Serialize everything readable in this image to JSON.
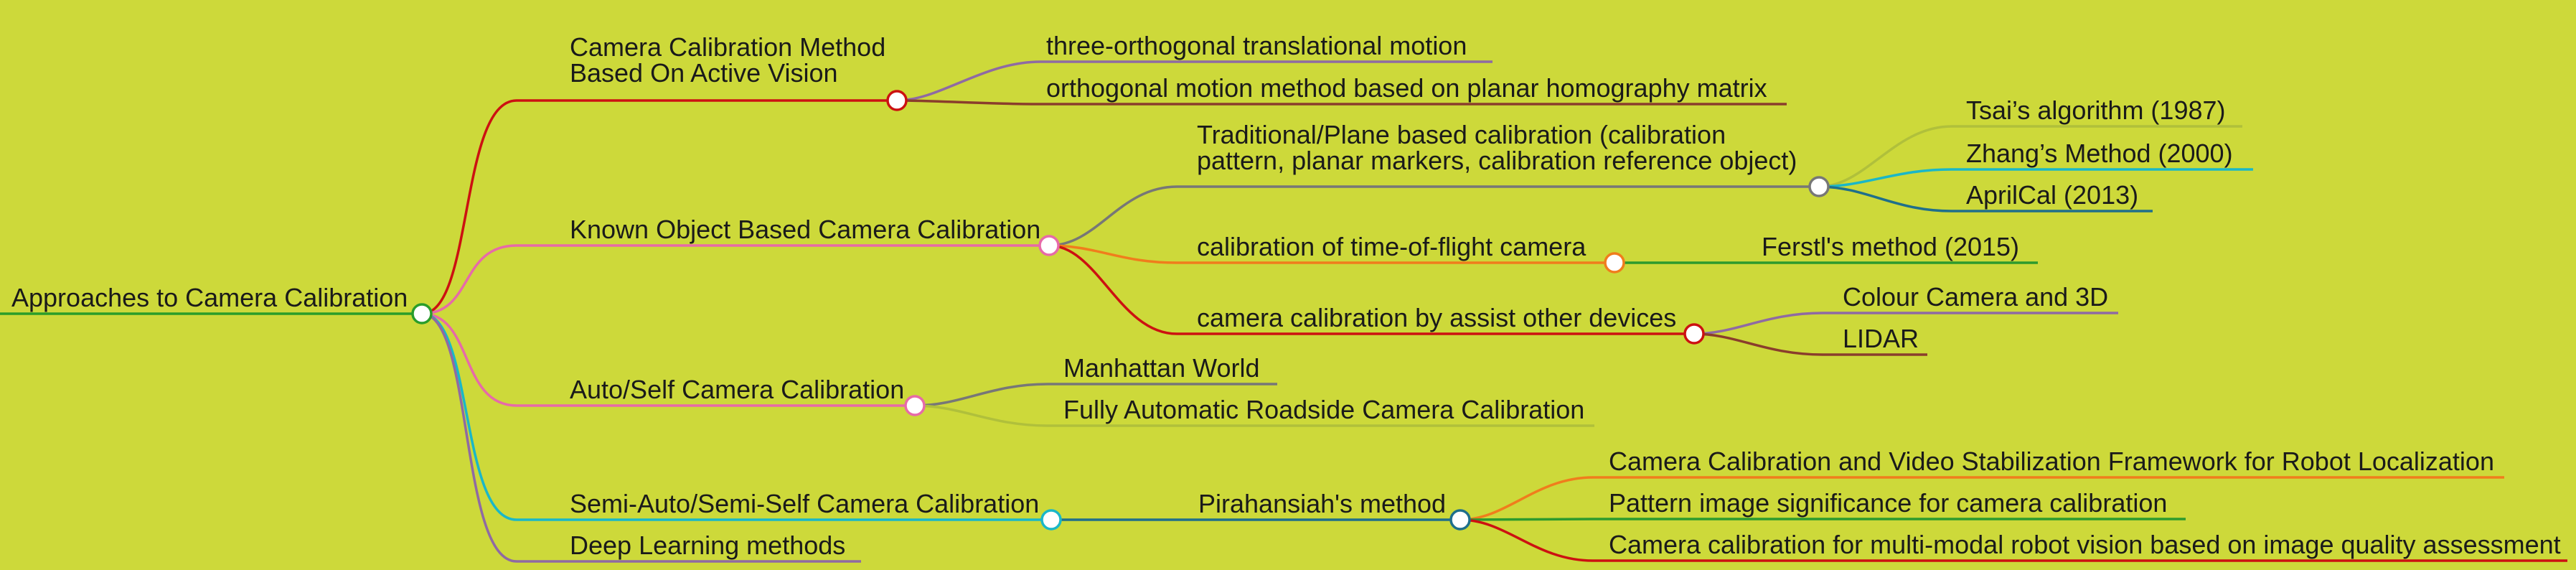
{
  "mindmap": {
    "root": {
      "label": "Approaches to Camera Calibration",
      "color": "#2a9d2a"
    },
    "branches": [
      {
        "id": "active",
        "label_lines": [
          "Camera Calibration Method",
          "Based On Active Vision"
        ],
        "color": "#cc1111",
        "children": [
          {
            "label": "three-orthogonal translational motion",
            "color": "#8f6aa3"
          },
          {
            "label": "orthogonal motion method based on planar homography matrix",
            "color": "#8a3d2c"
          }
        ]
      },
      {
        "id": "known",
        "label": "Known Object Based Camera Calibration",
        "color": "#e76aa8",
        "children": [
          {
            "label_lines": [
              "Traditional/Plane based calibration (calibration",
              "pattern, planar markers, calibration reference object)"
            ],
            "color": "#777777",
            "children": [
              {
                "label": "Tsai’s algorithm (1987)",
                "color": "#b0c03b"
              },
              {
                "label": "Zhang’s Method (2000)",
                "color": "#1ab7c8"
              },
              {
                "label": "AprilCal (2013)",
                "color": "#1f6f8b"
              }
            ]
          },
          {
            "label": "calibration of time-of-flight camera",
            "color": "#f07d1c",
            "children": [
              {
                "label": "Ferstl's method (2015)",
                "color": "#2d9a2d"
              }
            ]
          },
          {
            "label": "camera calibration by assist other devices",
            "color": "#cc1111",
            "children": [
              {
                "label": "Colour Camera and 3D",
                "color": "#8f6aa3"
              },
              {
                "label": "LIDAR",
                "color": "#8a3d2c"
              }
            ]
          }
        ]
      },
      {
        "id": "auto",
        "label": "Auto/Self Camera Calibration",
        "color": "#e76aa8",
        "children": [
          {
            "label": "Manhattan World",
            "color": "#777777"
          },
          {
            "label": "Fully Automatic Roadside Camera Calibration",
            "color": "#b0c03b"
          }
        ]
      },
      {
        "id": "semi",
        "label": "Semi-Auto/Semi-Self Camera Calibration",
        "color": "#1ab7c8",
        "children": [
          {
            "label": "Pirahansiah's method",
            "color": "#1f6f8b",
            "children": [
              {
                "label": "Camera Calibration and Video Stabilization Framework for Robot Localization",
                "color": "#f07d1c"
              },
              {
                "label": "Pattern image significance for camera calibration",
                "color": "#2d9a2d"
              },
              {
                "label": "Camera calibration for multi-modal robot vision based on image quality assessment",
                "color": "#cc1111"
              }
            ]
          }
        ]
      },
      {
        "id": "deep",
        "label": "Deep Learning methods",
        "color": "#8f6aa3",
        "children": []
      }
    ]
  }
}
